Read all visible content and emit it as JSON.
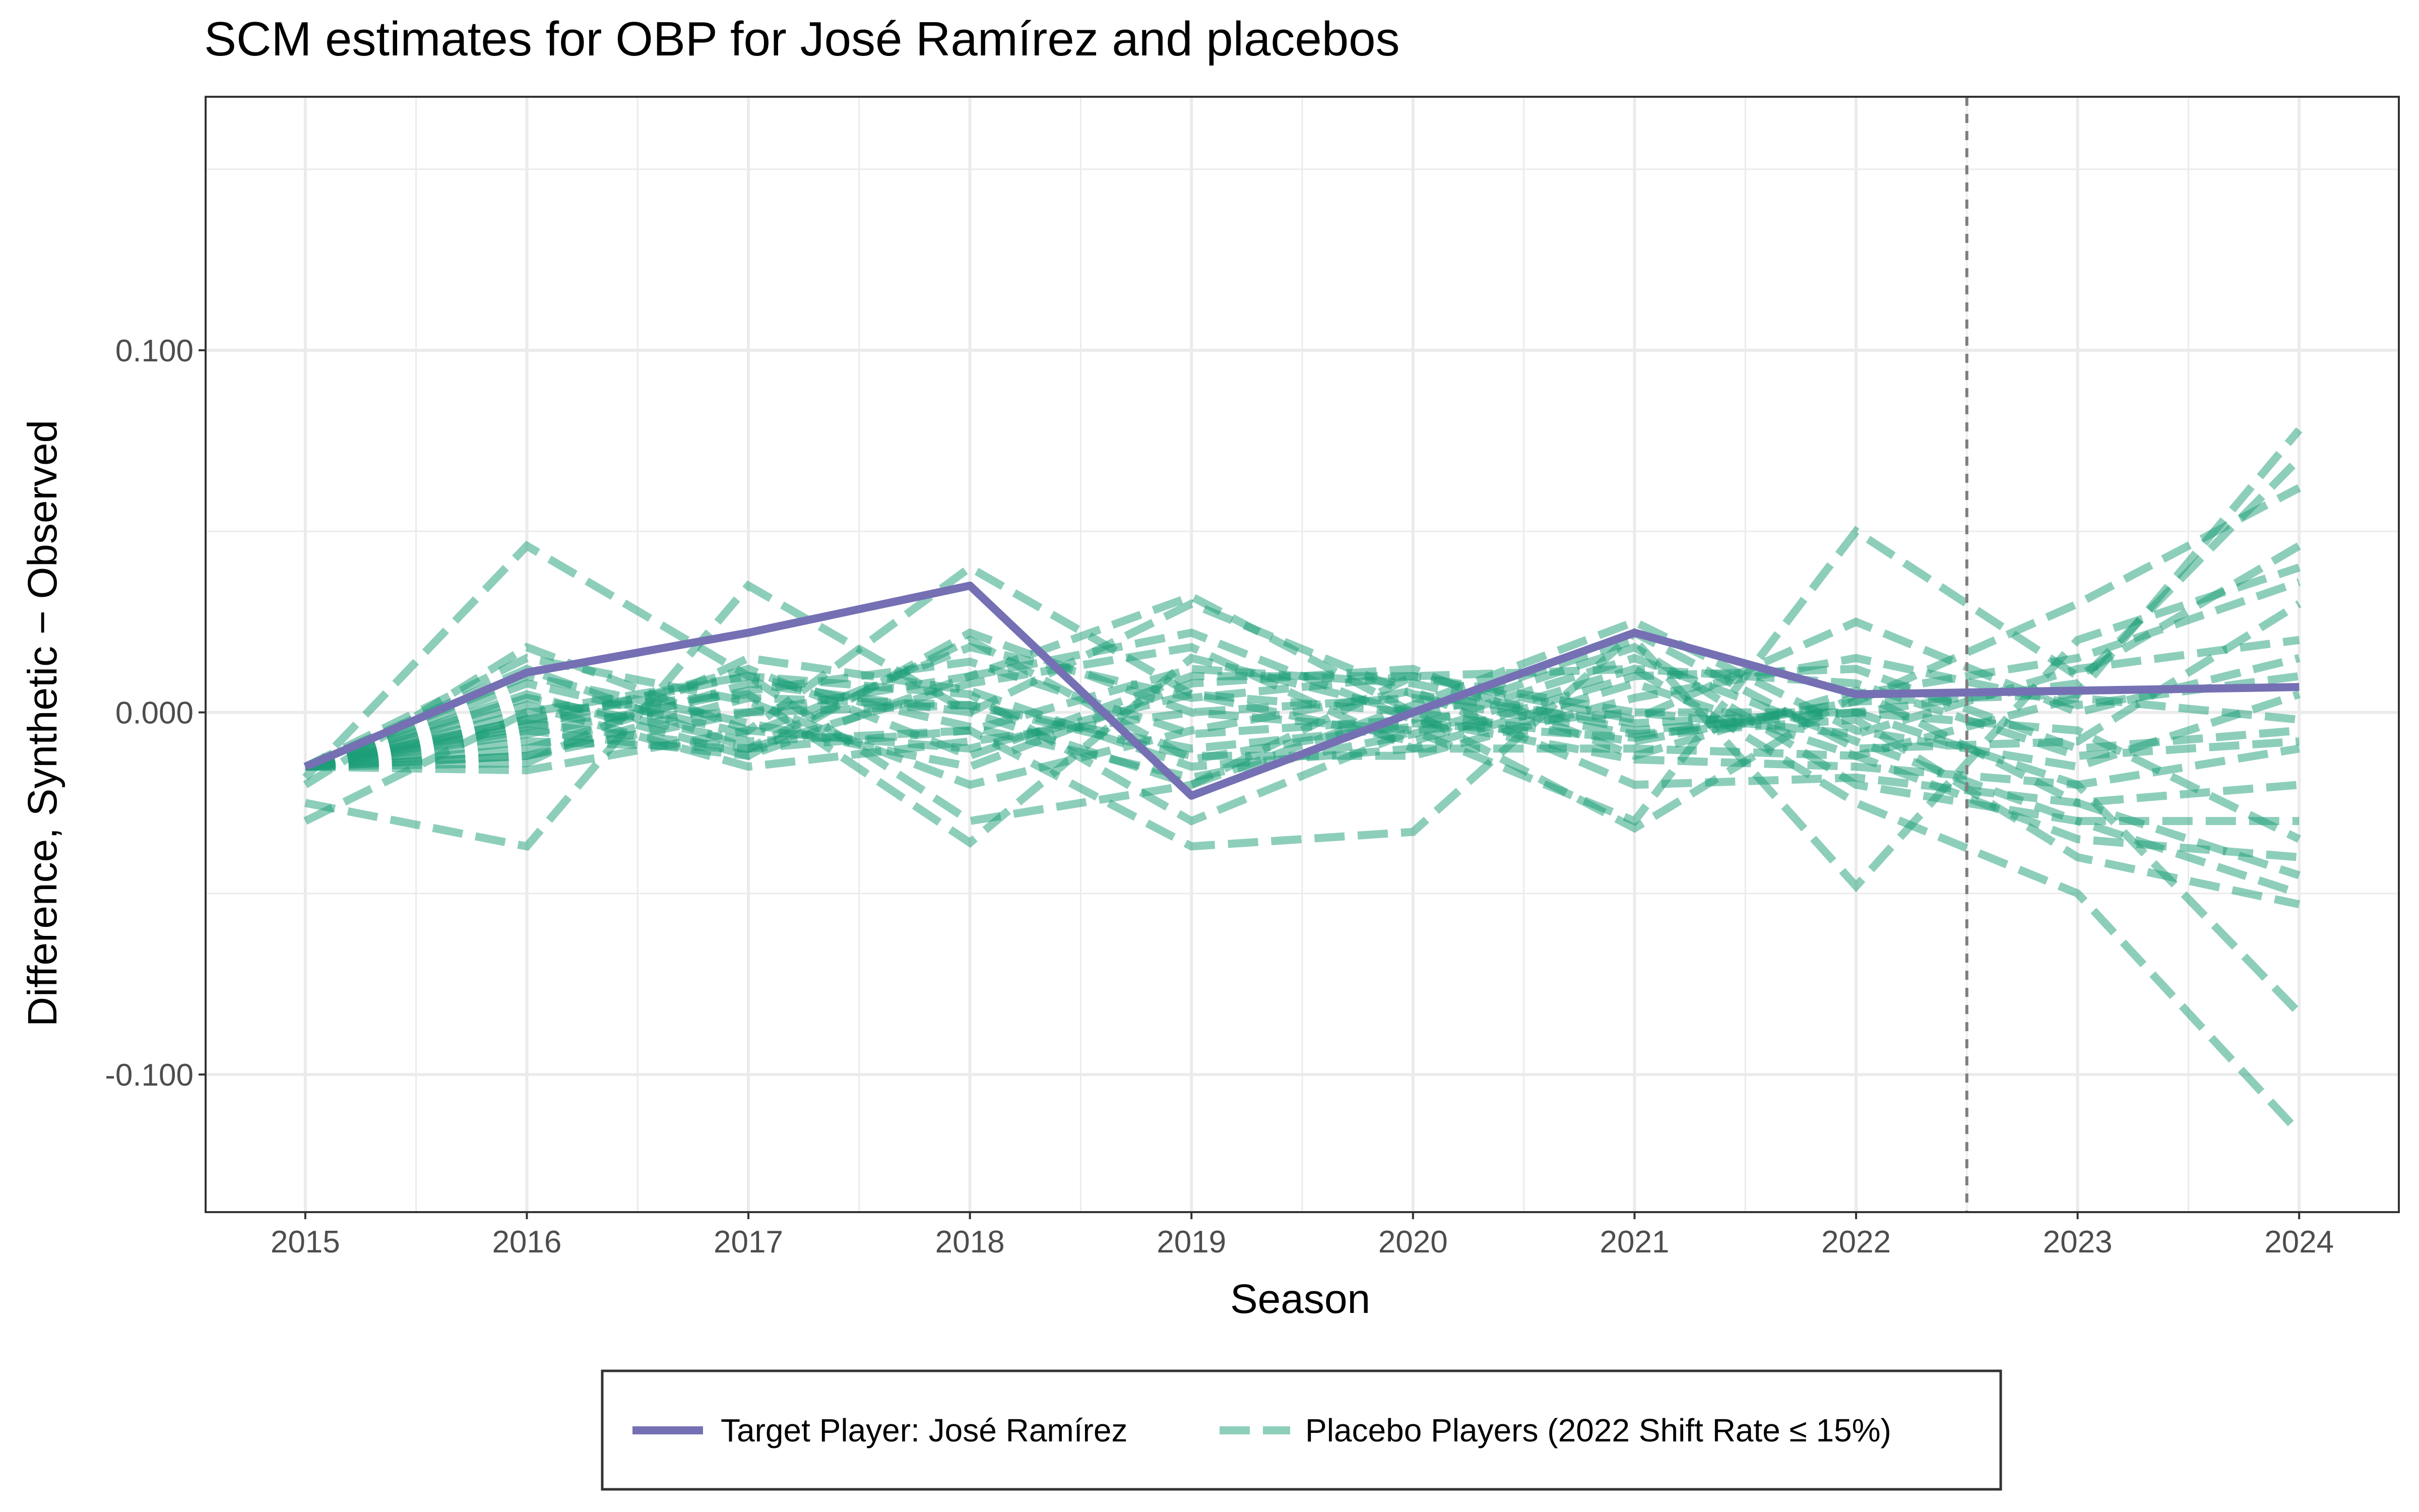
{
  "chart_data": {
    "type": "line",
    "title": "SCM estimates for OBP for José Ramírez and placebos",
    "xlabel": "Season",
    "ylabel": "Difference, Synthetic − Observed",
    "x": [
      2015,
      2016,
      2017,
      2018,
      2019,
      2020,
      2021,
      2022,
      2023,
      2024
    ],
    "x_tick_labels": [
      "2015",
      "2016",
      "2017",
      "2018",
      "2019",
      "2020",
      "2021",
      "2022",
      "2023",
      "2024"
    ],
    "xlim": [
      2014.55,
      2024.45
    ],
    "ylim": [
      -0.138,
      0.17
    ],
    "y_ticks": [
      -0.1,
      0.0,
      0.1
    ],
    "y_tick_labels": [
      "-0.100",
      "0.000",
      "0.100"
    ],
    "grid": true,
    "treatment_line_x": 2022.5,
    "colors": {
      "target": "#7570B3",
      "placebo": "#1B9E77",
      "treatment_line": "#7f7f7f",
      "grid": "#ebebeb",
      "panel_border": "#333333"
    },
    "legend_position": "bottom",
    "legend": {
      "target_label": "Target Player: José Ramírez",
      "placebo_label": "Placebo Players (2022 Shift Rate ≤ 15%)"
    },
    "target_series": {
      "name": "Target Player: José Ramírez",
      "values": [
        -0.015,
        0.011,
        0.022,
        0.035,
        -0.023,
        0.0,
        0.022,
        0.005,
        0.006,
        0.007
      ]
    },
    "placebo_series": [
      {
        "values": [
          -0.015,
          -0.003,
          -0.01,
          0.02,
          -0.013,
          -0.003,
          -0.007,
          0.003,
          0.005,
          0.078
        ]
      },
      {
        "values": [
          -0.03,
          0.0,
          0.01,
          -0.03,
          -0.02,
          0.01,
          0.012,
          -0.025,
          -0.05,
          -0.116
        ]
      },
      {
        "values": [
          -0.018,
          0.046,
          0.01,
          0.005,
          -0.03,
          -0.005,
          0.0,
          0.0,
          -0.02,
          -0.083
        ]
      },
      {
        "values": [
          -0.025,
          -0.037,
          0.035,
          0.0,
          0.03,
          0.005,
          -0.003,
          0.0,
          0.008,
          0.07
        ]
      },
      {
        "values": [
          -0.02,
          0.018,
          -0.005,
          0.04,
          0.005,
          0.0,
          -0.008,
          0.003,
          0.03,
          0.062
        ]
      },
      {
        "values": [
          -0.015,
          -0.005,
          -0.012,
          0.022,
          0.0,
          -0.005,
          -0.03,
          0.05,
          0.01,
          0.046
        ]
      },
      {
        "values": [
          -0.015,
          0.0,
          0.005,
          -0.036,
          0.015,
          0.0,
          0.02,
          -0.048,
          0.02,
          0.04
        ]
      },
      {
        "values": [
          -0.015,
          -0.012,
          0.0,
          0.01,
          0.032,
          0.0,
          -0.032,
          0.005,
          0.015,
          0.036
        ]
      },
      {
        "values": [
          -0.015,
          -0.008,
          -0.01,
          -0.005,
          -0.037,
          -0.033,
          0.022,
          -0.01,
          -0.008,
          0.03
        ]
      },
      {
        "values": [
          -0.015,
          -0.004,
          0.012,
          -0.012,
          0.01,
          0.01,
          -0.002,
          0.025,
          0.0,
          0.015
        ]
      },
      {
        "values": [
          -0.015,
          -0.01,
          0.008,
          0.0,
          -0.02,
          0.002,
          0.025,
          -0.005,
          -0.015,
          0.005
        ]
      },
      {
        "values": [
          -0.015,
          -0.016,
          -0.005,
          -0.01,
          0.005,
          -0.008,
          0.01,
          0.012,
          -0.01,
          -0.005
        ]
      },
      {
        "values": [
          -0.015,
          0.005,
          -0.012,
          0.01,
          0.022,
          -0.002,
          -0.013,
          -0.015,
          -0.02,
          -0.01
        ]
      },
      {
        "values": [
          -0.015,
          0.015,
          0.003,
          -0.02,
          -0.005,
          0.006,
          -0.02,
          -0.018,
          -0.025,
          -0.02
        ]
      },
      {
        "values": [
          -0.015,
          -0.002,
          0.0,
          0.002,
          -0.01,
          -0.004,
          0.015,
          -0.008,
          -0.03,
          -0.03
        ]
      },
      {
        "values": [
          -0.015,
          0.004,
          -0.008,
          -0.005,
          0.012,
          0.008,
          -0.005,
          0.0,
          -0.005,
          -0.035
        ]
      },
      {
        "values": [
          -0.015,
          -0.014,
          0.015,
          0.006,
          -0.015,
          -0.01,
          0.008,
          -0.012,
          -0.035,
          -0.04
        ]
      },
      {
        "values": [
          -0.015,
          0.01,
          -0.003,
          -0.015,
          0.008,
          0.012,
          -0.012,
          0.006,
          -0.025,
          -0.045
        ]
      },
      {
        "values": [
          -0.015,
          -0.006,
          0.006,
          0.014,
          -0.006,
          -0.002,
          0.018,
          -0.02,
          -0.03,
          -0.05
        ]
      },
      {
        "values": [
          -0.015,
          0.002,
          -0.015,
          -0.008,
          0.0,
          0.004,
          -0.006,
          -0.002,
          -0.04,
          -0.053
        ]
      },
      {
        "values": [
          -0.015,
          -0.012,
          0.004,
          0.002,
          -0.012,
          -0.012,
          0.004,
          0.015,
          0.002,
          0.01
        ]
      },
      {
        "values": [
          -0.015,
          0.008,
          -0.006,
          0.018,
          0.004,
          0.01,
          0.0,
          -0.006,
          0.012,
          0.02
        ]
      },
      {
        "values": [
          -0.015,
          -0.002,
          0.01,
          -0.004,
          -0.018,
          -0.006,
          0.012,
          0.008,
          -0.012,
          -0.008
        ]
      },
      {
        "values": [
          -0.015,
          0.012,
          -0.01,
          0.008,
          0.018,
          -0.01,
          -0.01,
          -0.012,
          0.004,
          -0.002
        ]
      }
    ]
  }
}
